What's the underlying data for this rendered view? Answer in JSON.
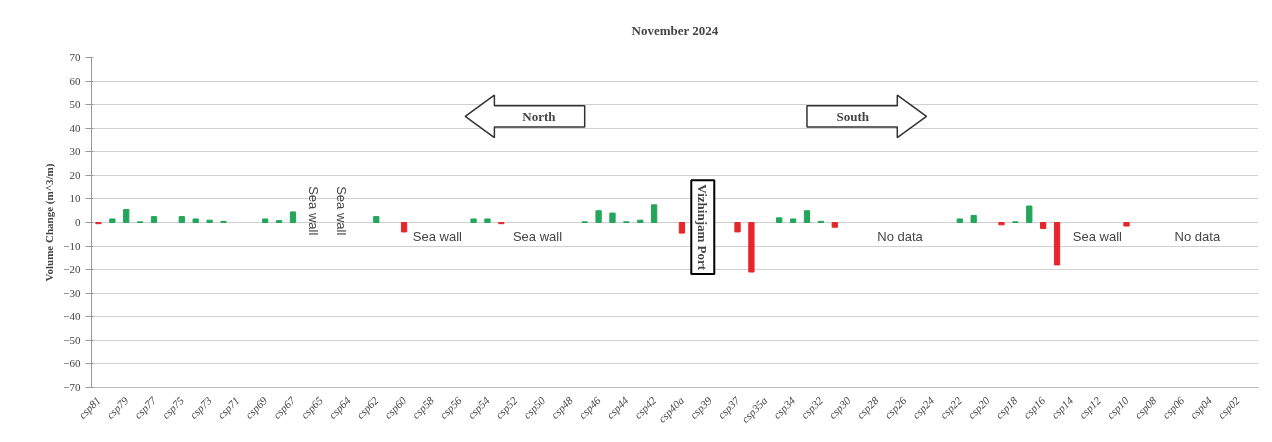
{
  "chart_data": {
    "type": "bar",
    "title": "November 2024",
    "ylabel": "Volume Change (m^3/m)",
    "categories": [
      "csp81",
      null,
      "csp79",
      null,
      "csp77",
      null,
      "csp75",
      null,
      "csp73",
      null,
      "csp71",
      null,
      "csp69",
      null,
      "csp67",
      null,
      "csp65",
      null,
      "csp64",
      null,
      "csp62",
      null,
      "csp60",
      null,
      "csp58",
      null,
      "csp56",
      null,
      "csp54",
      null,
      "csp52",
      null,
      "csp50",
      null,
      "csp48",
      null,
      "csp46",
      null,
      "csp44",
      null,
      "csp42",
      null,
      "csp40a",
      null,
      "csp39",
      null,
      "csp37",
      null,
      "csp35a",
      null,
      "csp34",
      null,
      "csp32",
      null,
      "csp30",
      null,
      "csp28",
      null,
      "csp26",
      null,
      "csp24",
      null,
      "csp22",
      null,
      "csp20",
      null,
      "csp18",
      null,
      "csp16",
      null,
      "csp14",
      null,
      "csp12",
      null,
      "csp10",
      null,
      "csp08",
      null,
      "csp06",
      null,
      "csp04",
      null,
      "csp02",
      null
    ],
    "values": [
      -0.5,
      1.5,
      5.5,
      0.3,
      2.5,
      null,
      2.5,
      1.5,
      1,
      0.5,
      null,
      null,
      1.5,
      0.8,
      4.5,
      null,
      null,
      null,
      null,
      null,
      2.5,
      null,
      -4,
      null,
      null,
      null,
      null,
      1.5,
      1.5,
      -0.5,
      null,
      null,
      null,
      null,
      null,
      0.3,
      5,
      4,
      0.3,
      1,
      7.5,
      null,
      -4.5,
      null,
      null,
      null,
      -4,
      -21,
      null,
      2,
      1.5,
      5,
      0.5,
      -2,
      null,
      null,
      null,
      null,
      null,
      null,
      null,
      null,
      1.5,
      3,
      null,
      -1,
      0.3,
      7,
      -2.5,
      -18,
      null,
      null,
      null,
      null,
      -1.5,
      null,
      null,
      null,
      null,
      null,
      null,
      null,
      null,
      null
    ],
    "colors": [
      "#e5262a",
      "#23a65a",
      "#23a65a",
      "#23a65a",
      "#23a65a",
      null,
      "#23a65a",
      "#23a65a",
      "#23a65a",
      "#23a65a",
      null,
      null,
      "#23a65a",
      "#23a65a",
      "#23a65a",
      null,
      null,
      null,
      null,
      null,
      "#23a65a",
      null,
      "#e5262a",
      null,
      null,
      null,
      null,
      "#23a65a",
      "#23a65a",
      "#e5262a",
      null,
      null,
      null,
      null,
      null,
      "#23a65a",
      "#23a65a",
      "#23a65a",
      "#23a65a",
      "#23a65a",
      "#23a65a",
      null,
      "#e5262a",
      null,
      null,
      null,
      "#e5262a",
      "#e5262a",
      null,
      "#23a65a",
      "#23a65a",
      "#23a65a",
      "#23a65a",
      "#e5262a",
      null,
      null,
      null,
      null,
      null,
      null,
      null,
      null,
      "#23a65a",
      "#23a65a",
      null,
      "#e5262a",
      "#23a65a",
      "#23a65a",
      "#e5262a",
      "#e5262a",
      null,
      null,
      null,
      null,
      "#e5262a",
      null,
      null,
      null,
      null,
      null,
      null,
      null,
      null,
      null
    ],
    "ylim": [
      -70,
      70
    ],
    "yticks": [
      -70,
      -60,
      -50,
      -40,
      -30,
      -20,
      -10,
      0,
      10,
      20,
      30,
      40,
      50,
      60,
      70
    ],
    "grid": "y",
    "annotations": [
      "Sea wall",
      "Sea wall",
      "Sea wall",
      "Sea wall",
      "Vizhinjam Port",
      "No data",
      "Sea wall",
      "No data",
      "North",
      "South"
    ]
  }
}
